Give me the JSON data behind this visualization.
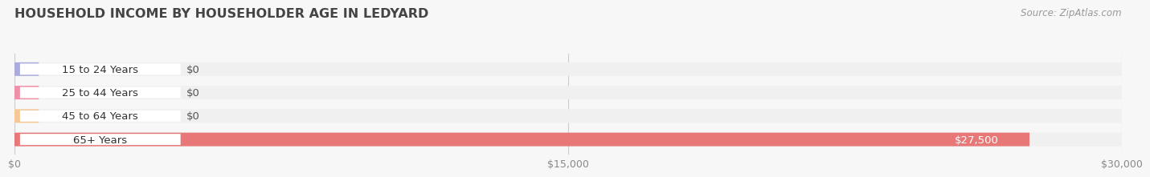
{
  "title": "HOUSEHOLD INCOME BY HOUSEHOLDER AGE IN LEDYARD",
  "source": "Source: ZipAtlas.com",
  "categories": [
    "15 to 24 Years",
    "25 to 44 Years",
    "45 to 64 Years",
    "65+ Years"
  ],
  "values": [
    0,
    0,
    0,
    27500
  ],
  "bar_colors": [
    "#aaaadd",
    "#f090a8",
    "#f5c896",
    "#e87878"
  ],
  "bar_bg_color": "#ebebeb",
  "label_bg_color": "#ffffff",
  "background_color": "#f7f7f7",
  "row_bg_color": "#f0f0f0",
  "xlim": [
    0,
    30000
  ],
  "xticks": [
    0,
    15000,
    30000
  ],
  "xtick_labels": [
    "$0",
    "$15,000",
    "$30,000"
  ],
  "title_fontsize": 11.5,
  "label_fontsize": 9.5,
  "tick_fontsize": 9,
  "source_fontsize": 8.5,
  "bar_height": 0.58,
  "value_label_color": "#ffffff",
  "zero_label_color": "#555555",
  "title_color": "#444444",
  "tick_color": "#888888"
}
